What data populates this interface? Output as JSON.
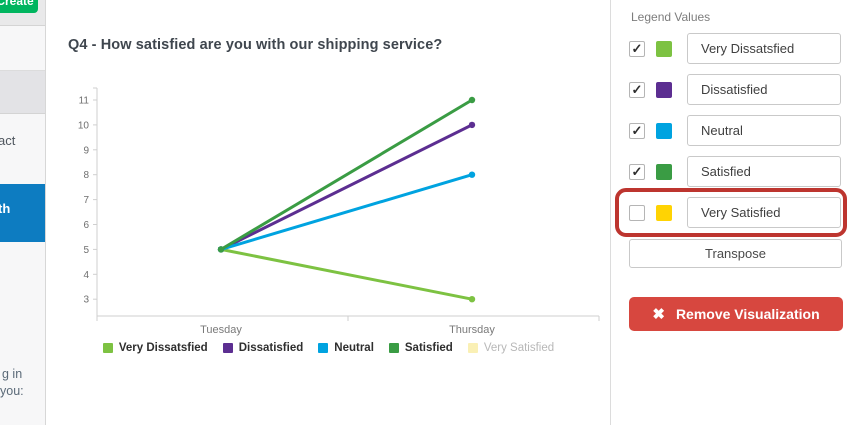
{
  "create_button": {
    "label": "Create"
  },
  "sidebar": {
    "fragment_item": "act",
    "active_item": "th",
    "footer_line1": "g in",
    "footer_line2": "you:"
  },
  "chart_data": {
    "type": "line",
    "title": "Q4 - How satisfied are you with our shipping service?",
    "x": [
      "Tuesday",
      "Thursday"
    ],
    "xlabel": "",
    "ylabel": "",
    "ylim": [
      3,
      11
    ],
    "yticks": [
      3,
      4,
      5,
      6,
      7,
      8,
      9,
      10,
      11
    ],
    "grid": false,
    "legend_position": "bottom",
    "series": [
      {
        "name": "Very Dissatsfied",
        "color": "#7dc242",
        "values": [
          5,
          3
        ],
        "faded": false
      },
      {
        "name": "Dissatisfied",
        "color": "#5c2e91",
        "values": [
          5,
          10
        ],
        "faded": false
      },
      {
        "name": "Neutral",
        "color": "#00a3e0",
        "values": [
          5,
          8
        ],
        "faded": false
      },
      {
        "name": "Satisfied",
        "color": "#3a9c44",
        "values": [
          5,
          11
        ],
        "faded": false
      },
      {
        "name": "Very Satisfied",
        "color": "#faf0b5",
        "values": [],
        "faded": true
      }
    ]
  },
  "legend_panel": {
    "title": "Legend Values",
    "rows": [
      {
        "label": "Very Dissatsfied",
        "color": "#7dc242",
        "checked": true,
        "highlighted": false
      },
      {
        "label": "Dissatisfied",
        "color": "#5c2e91",
        "checked": true,
        "highlighted": false
      },
      {
        "label": "Neutral",
        "color": "#00a3e0",
        "checked": true,
        "highlighted": false
      },
      {
        "label": "Satisfied",
        "color": "#3a9c44",
        "checked": true,
        "highlighted": false
      },
      {
        "label": "Very Satisfied",
        "color": "#ffd303",
        "checked": false,
        "highlighted": true
      }
    ],
    "transpose_label": "Transpose",
    "remove_label": "Remove Visualization",
    "remove_color": "#d7473f",
    "highlight_color": "#bd352f"
  }
}
